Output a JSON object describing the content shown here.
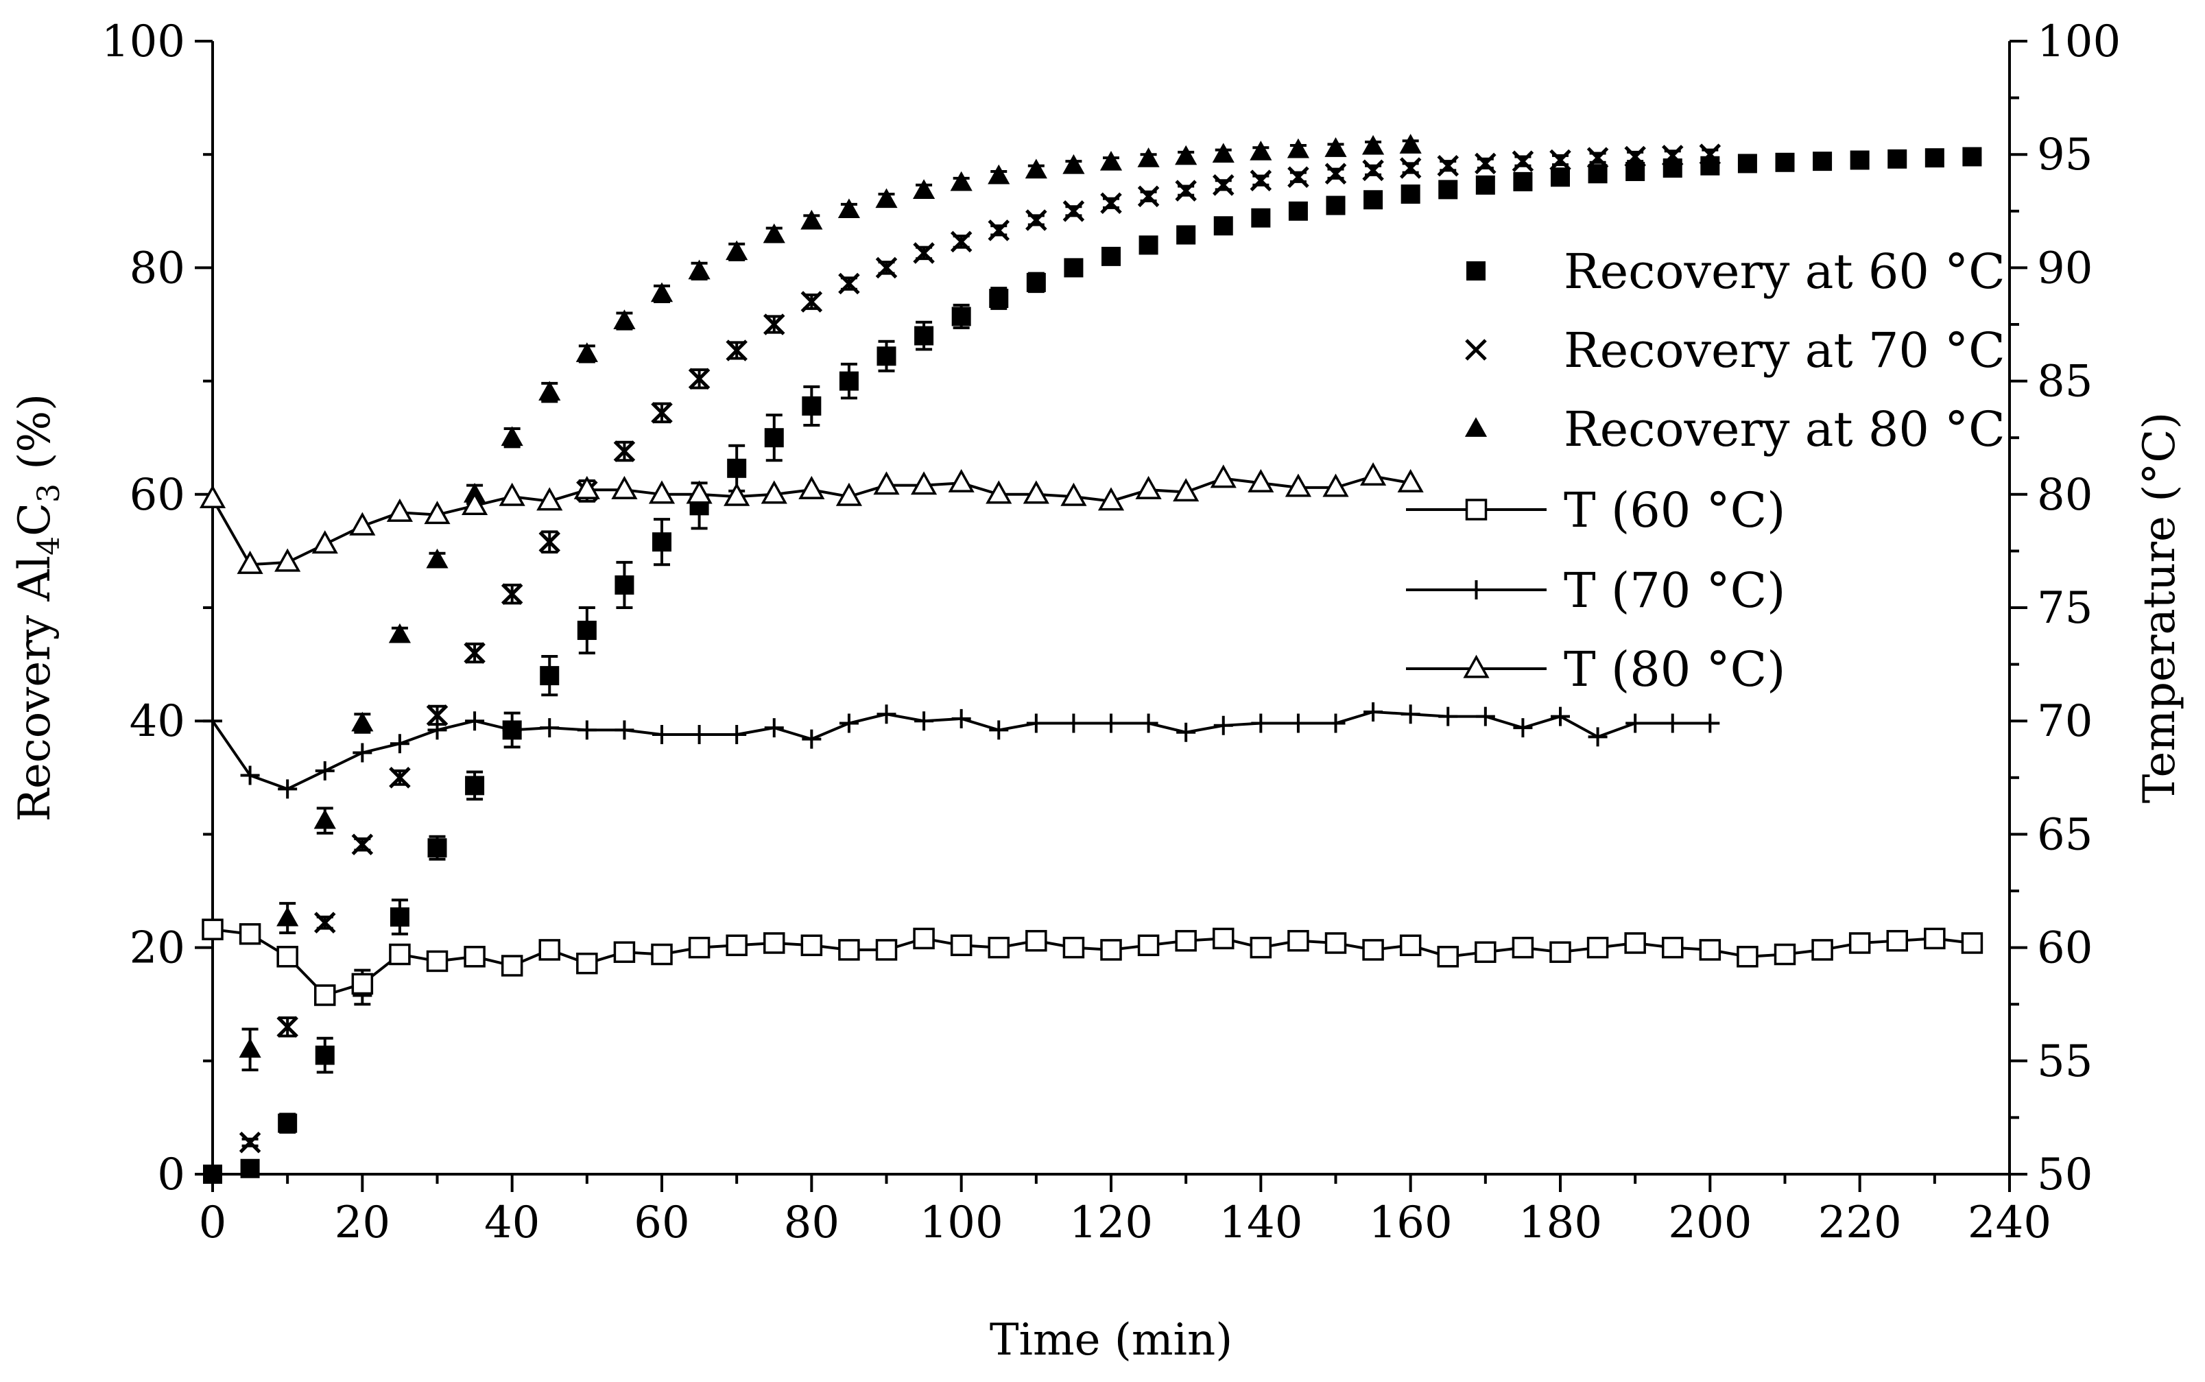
{
  "chart_data": {
    "type": "scatter",
    "xlabel": "Time (min)",
    "ylabel_main": "Recovery Al",
    "ylabel_sub1": "4",
    "ylabel_mid": "C",
    "ylabel_sub2": "3",
    "ylabel_end": " (%)",
    "y2label": "Temperature (°C)",
    "xlim": [
      0,
      240
    ],
    "ylim": [
      0,
      100
    ],
    "y2lim": [
      50,
      100
    ],
    "xticks": [
      0,
      20,
      40,
      60,
      80,
      100,
      120,
      140,
      160,
      180,
      200,
      220,
      240
    ],
    "yticks": [
      0,
      20,
      40,
      60,
      80,
      100
    ],
    "y2ticks": [
      50,
      55,
      60,
      65,
      70,
      75,
      80,
      85,
      90,
      95,
      100
    ],
    "legend_position": "right-center",
    "series": [
      {
        "name": "Recovery at 60 °C",
        "axis": "left",
        "marker": "square-filled",
        "x": [
          0,
          5,
          10,
          15,
          20,
          25,
          30,
          35,
          40,
          45,
          50,
          55,
          60,
          65,
          70,
          75,
          80,
          85,
          90,
          95,
          100,
          105,
          110,
          115,
          120,
          125,
          130,
          135,
          140,
          145,
          150,
          155,
          160,
          165,
          170,
          175,
          180,
          185,
          190,
          195,
          200,
          205,
          210,
          215,
          220,
          225,
          230,
          235
        ],
        "values": [
          0,
          0.5,
          4.5,
          10.5,
          16.5,
          22.7,
          28.8,
          34.3,
          39.2,
          44,
          48,
          52,
          55.8,
          59,
          62.3,
          65,
          67.8,
          70,
          72.2,
          74,
          75.7,
          77.3,
          78.7,
          80,
          81,
          82,
          82.9,
          83.7,
          84.4,
          85,
          85.5,
          86,
          86.5,
          86.9,
          87.3,
          87.6,
          88,
          88.3,
          88.5,
          88.8,
          89,
          89.2,
          89.3,
          89.4,
          89.5,
          89.6,
          89.7,
          89.8
        ],
        "errors": [
          0,
          0.4,
          0.8,
          1.5,
          1.5,
          1.5,
          1,
          1.2,
          1.5,
          1.7,
          2,
          2,
          2,
          2,
          2,
          2,
          1.7,
          1.5,
          1.3,
          1.2,
          1,
          0.9,
          0.8,
          0.7,
          0.7,
          0.6,
          0.6,
          0.5,
          0.5,
          0.5,
          0.4,
          0.4,
          0.4,
          0.4,
          0.3,
          0.3,
          0.3,
          0.3,
          0.3,
          0.3,
          0.3,
          0.3,
          0.3,
          0.3,
          0.3,
          0.3,
          0.3,
          0.3
        ]
      },
      {
        "name": "Recovery at 70 °C",
        "axis": "left",
        "marker": "x",
        "x": [
          5,
          10,
          15,
          20,
          25,
          30,
          35,
          40,
          45,
          50,
          55,
          60,
          65,
          70,
          75,
          80,
          85,
          90,
          95,
          100,
          105,
          110,
          115,
          120,
          125,
          130,
          135,
          140,
          145,
          150,
          155,
          160,
          165,
          170,
          175,
          180,
          185,
          190,
          195,
          200
        ],
        "values": [
          2.8,
          13,
          22.2,
          29.1,
          35,
          40.5,
          46,
          51.2,
          55.8,
          60.3,
          63.8,
          67.2,
          70.2,
          72.7,
          75,
          77,
          78.6,
          80,
          81.3,
          82.3,
          83.3,
          84.2,
          85,
          85.7,
          86.3,
          86.8,
          87.3,
          87.7,
          88,
          88.3,
          88.6,
          88.8,
          89,
          89.2,
          89.4,
          89.5,
          89.7,
          89.8,
          89.9,
          90
        ],
        "errors": [
          0.3,
          0.8,
          0.5,
          0.5,
          0.6,
          0.8,
          0.8,
          0.8,
          0.9,
          0.9,
          0.8,
          0.8,
          0.8,
          0.7,
          0.7,
          0.6,
          0.5,
          0.5,
          0.5,
          0.5,
          0.4,
          0.4,
          0.4,
          0.4,
          0.4,
          0.4,
          0.4,
          0.4,
          0.4,
          0.4,
          0.4,
          0.4,
          0.4,
          0.4,
          0.4,
          0.4,
          0.4,
          0.4,
          0.4,
          0.4
        ]
      },
      {
        "name": "Recovery at 80 °C",
        "axis": "left",
        "marker": "triangle-filled",
        "x": [
          5,
          10,
          15,
          20,
          25,
          30,
          35,
          40,
          45,
          50,
          55,
          60,
          65,
          70,
          75,
          80,
          85,
          90,
          95,
          100,
          105,
          110,
          115,
          120,
          125,
          130,
          135,
          140,
          145,
          150,
          155,
          160
        ],
        "values": [
          11,
          22.6,
          31.2,
          39.8,
          47.6,
          54.2,
          60,
          65,
          69,
          72.4,
          75.3,
          77.7,
          79.7,
          81.4,
          82.9,
          84.1,
          85.1,
          86,
          86.8,
          87.5,
          88.1,
          88.6,
          89,
          89.3,
          89.6,
          89.8,
          90,
          90.2,
          90.4,
          90.5,
          90.7,
          90.8
        ],
        "errors": [
          1.8,
          1.3,
          1.1,
          0.8,
          0.6,
          0.6,
          0.8,
          0.8,
          0.8,
          0.7,
          0.7,
          0.7,
          0.7,
          0.7,
          0.6,
          0.5,
          0.5,
          0.5,
          0.5,
          0.4,
          0.4,
          0.4,
          0.4,
          0.4,
          0.4,
          0.4,
          0.4,
          0.4,
          0.4,
          0.4,
          0.4,
          0.4
        ]
      },
      {
        "name": "T (60 °C)",
        "axis": "right",
        "marker": "square-open",
        "x": [
          0,
          5,
          10,
          15,
          20,
          25,
          30,
          35,
          40,
          45,
          50,
          55,
          60,
          65,
          70,
          75,
          80,
          85,
          90,
          95,
          100,
          105,
          110,
          115,
          120,
          125,
          130,
          135,
          140,
          145,
          150,
          155,
          160,
          165,
          170,
          175,
          180,
          185,
          190,
          195,
          200,
          205,
          210,
          215,
          220,
          225,
          230,
          235
        ],
        "values": [
          60.8,
          60.6,
          59.6,
          57.9,
          58.4,
          59.7,
          59.4,
          59.6,
          59.2,
          59.9,
          59.3,
          59.8,
          59.7,
          60,
          60.1,
          60.2,
          60.1,
          59.9,
          59.9,
          60.4,
          60.1,
          60,
          60.3,
          60,
          59.9,
          60.1,
          60.3,
          60.4,
          60,
          60.3,
          60.2,
          59.9,
          60.1,
          59.6,
          59.8,
          60,
          59.8,
          60,
          60.2,
          60,
          59.9,
          59.6,
          59.7,
          59.9,
          60.2,
          60.3,
          60.4,
          60.2
        ]
      },
      {
        "name": "T (70 °C)",
        "axis": "right",
        "marker": "plus",
        "x": [
          0,
          5,
          10,
          15,
          20,
          25,
          30,
          35,
          40,
          45,
          50,
          55,
          60,
          65,
          70,
          75,
          80,
          85,
          90,
          95,
          100,
          105,
          110,
          115,
          120,
          125,
          130,
          135,
          140,
          145,
          150,
          155,
          160,
          165,
          170,
          175,
          180,
          185,
          190,
          195,
          200
        ],
        "values": [
          70,
          67.6,
          67,
          67.8,
          68.6,
          69,
          69.6,
          70,
          69.6,
          69.7,
          69.6,
          69.6,
          69.4,
          69.4,
          69.4,
          69.7,
          69.2,
          69.9,
          70.3,
          70,
          70.1,
          69.6,
          69.9,
          69.9,
          69.9,
          69.9,
          69.5,
          69.8,
          69.9,
          69.9,
          69.9,
          70.4,
          70.3,
          70.2,
          70.2,
          69.7,
          70.2,
          69.3,
          69.9,
          69.9,
          69.9
        ]
      },
      {
        "name": "T (80 °C)",
        "axis": "right",
        "marker": "triangle-open",
        "x": [
          0,
          5,
          10,
          15,
          20,
          25,
          30,
          35,
          40,
          45,
          50,
          55,
          60,
          65,
          70,
          75,
          80,
          85,
          90,
          95,
          100,
          105,
          110,
          115,
          120,
          125,
          130,
          135,
          140,
          145,
          150,
          155,
          160
        ],
        "values": [
          79.8,
          76.9,
          77,
          77.8,
          78.6,
          79.2,
          79.1,
          79.5,
          79.9,
          79.7,
          80.2,
          80.2,
          80,
          80,
          79.9,
          80,
          80.2,
          79.9,
          80.4,
          80.4,
          80.5,
          80,
          80,
          79.9,
          79.7,
          80.2,
          80.1,
          80.7,
          80.5,
          80.3,
          80.3,
          80.8,
          80.5
        ]
      }
    ]
  }
}
